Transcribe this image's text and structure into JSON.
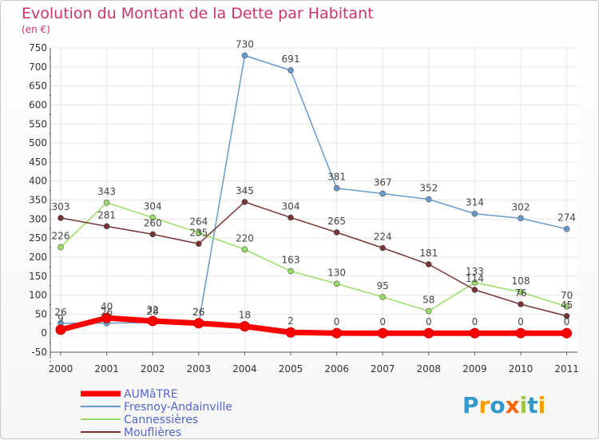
{
  "chart_data": {
    "type": "line",
    "title": "Evolution du Montant de la Dette par Habitant",
    "subtitle": "(en €)",
    "x": [
      "2000",
      "2001",
      "2002",
      "2003",
      "2004",
      "2005",
      "2006",
      "2007",
      "2008",
      "2009",
      "2010",
      "2011"
    ],
    "ylim": [
      -50,
      750
    ],
    "yticks": [
      "-50",
      "0",
      "50",
      "100",
      "150",
      "200",
      "250",
      "300",
      "350",
      "400",
      "450",
      "500",
      "550",
      "600",
      "650",
      "700",
      "750"
    ],
    "grid": true,
    "legend_position": "bottom-left",
    "series": [
      {
        "name": "AUMâTRE",
        "color": "#ff0000",
        "style": "thick",
        "values": [
          9,
          40,
          32,
          26,
          18,
          2,
          0,
          0,
          0,
          0,
          0,
          0
        ],
        "labels": [
          "9",
          "40",
          "32",
          "26",
          "18",
          "2",
          "0",
          "0",
          "0",
          "0",
          "0",
          "0"
        ]
      },
      {
        "name": "Fresnoy-Andainville",
        "color": "#6699cc",
        "style": "normal",
        "values": [
          26,
          26,
          28,
          26,
          730,
          691,
          381,
          367,
          352,
          314,
          302,
          274
        ],
        "labels": [
          "26",
          "26",
          "28",
          "26",
          "730",
          "691",
          "381",
          "367",
          "352",
          "314",
          "302",
          "274"
        ]
      },
      {
        "name": "Cannessières",
        "color": "#99dd66",
        "style": "normal",
        "values": [
          226,
          343,
          304,
          264,
          220,
          163,
          130,
          95,
          58,
          133,
          108,
          70
        ],
        "labels": [
          "226",
          "343",
          "304",
          "264",
          "220",
          "163",
          "130",
          "95",
          "58",
          "133",
          "108",
          "70"
        ]
      },
      {
        "name": "Mouflières",
        "color": "#773333",
        "style": "normal",
        "values": [
          303,
          281,
          260,
          235,
          345,
          304,
          265,
          224,
          181,
          114,
          76,
          45
        ],
        "labels": [
          "303",
          "281",
          "260",
          "235",
          "345",
          "304",
          "265",
          "224",
          "181",
          "114",
          "76",
          "45"
        ]
      }
    ]
  },
  "logo": {
    "text": "Proxiti"
  }
}
